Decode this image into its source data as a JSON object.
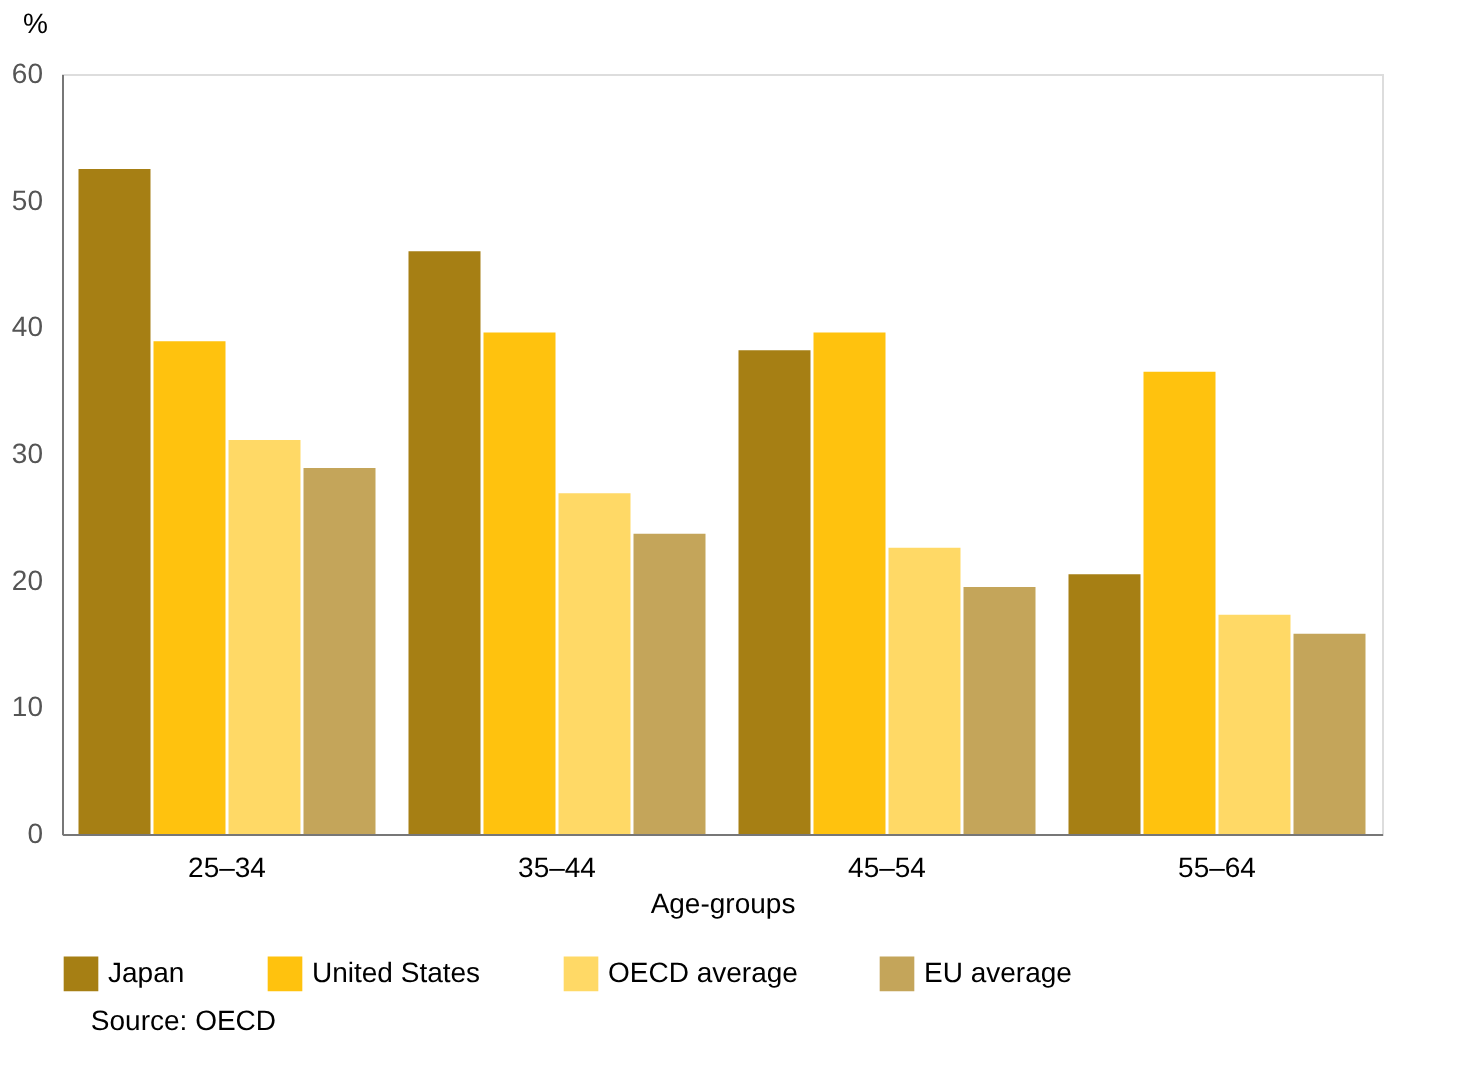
{
  "chart_data": {
    "type": "bar",
    "ylabel": "%",
    "xlabel": "Age-groups",
    "categories": [
      "25–34",
      "35–44",
      "45–54",
      "55–64"
    ],
    "series": [
      {
        "name": "Japan",
        "color": "#a67f14",
        "values": [
          52.5,
          46.0,
          38.2,
          20.5
        ]
      },
      {
        "name": "United States",
        "color": "#ffc20e",
        "values": [
          38.9,
          39.6,
          39.6,
          36.5
        ]
      },
      {
        "name": "OECD average",
        "color": "#ffd966",
        "values": [
          31.1,
          26.9,
          22.6,
          17.3
        ]
      },
      {
        "name": "EU average",
        "color": "#c4a55a",
        "values": [
          28.9,
          23.7,
          19.5,
          15.8
        ]
      }
    ],
    "ylim": [
      0,
      60
    ],
    "yticks": [
      0,
      10,
      20,
      30,
      40,
      50,
      60
    ],
    "grid": false,
    "legend": "bottom",
    "annotations": [
      "Source: OECD"
    ]
  }
}
